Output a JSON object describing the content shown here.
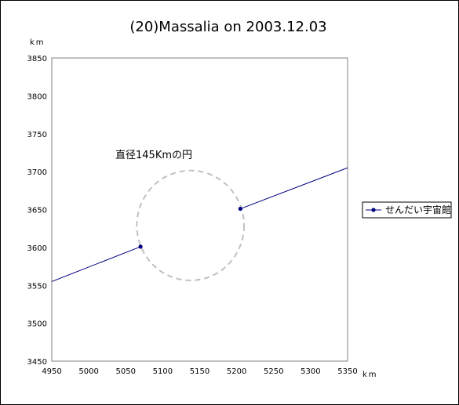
{
  "chart_data": {
    "type": "scatter",
    "title": "(20)Massalia on 2003.12.03",
    "xlabel": "km",
    "ylabel": "km",
    "xlim": [
      4950,
      5350
    ],
    "ylim": [
      3450,
      3850
    ],
    "xticks": [
      "4950",
      "5000",
      "5050",
      "5100",
      "5150",
      "5200",
      "5250",
      "5300",
      "5350"
    ],
    "yticks": [
      "3450",
      "3500",
      "3550",
      "3600",
      "3650",
      "3700",
      "3750",
      "3800",
      "3850"
    ],
    "grid": false,
    "legend_position": "right",
    "series": [
      {
        "name": "せんだい宇宙館",
        "color": "#000080",
        "segments": [
          [
            [
              4950,
              3555
            ],
            [
              5070,
              3601
            ]
          ],
          [
            [
              5205,
              3651
            ],
            [
              5355,
              3707
            ]
          ]
        ],
        "points": [
          [
            5070,
            3601
          ],
          [
            5205,
            3651
          ]
        ]
      }
    ],
    "circle": {
      "label": "直径145Kmの円",
      "center": [
        5137.5,
        3629
      ],
      "diameter": 145,
      "style": "dashed",
      "color": "#c0c0c0"
    }
  }
}
